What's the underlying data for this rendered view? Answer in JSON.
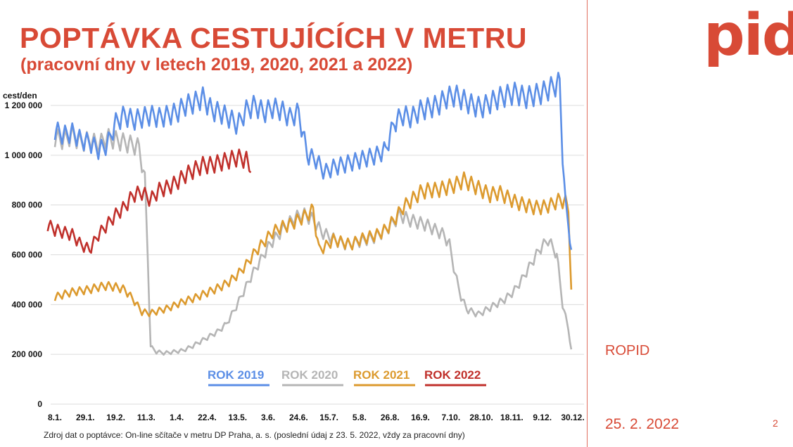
{
  "header": {
    "title": "POPTÁVKA CESTUJÍCÍCH V METRU",
    "subtitle": "(pracovní dny v letech 2019, 2020, 2021 a 2022)"
  },
  "logo": "pid",
  "organization": "ROPID",
  "date": "25. 2. 2022",
  "page_number": "2",
  "source_note": "Zdroj dat o poptávce: On-line sčítače v metru DP Praha, a. s. (poslední údaj z 23. 5. 2022, vždy za pracovní dny)",
  "colors": {
    "accent": "#d84a36",
    "rok2019": "#5b8ee6",
    "rok2020": "#b5b5b5",
    "rok2021": "#dc9a2e",
    "rok2022": "#c0302b"
  },
  "chart_data": {
    "type": "line",
    "title": "",
    "ylabel": "cest/den",
    "xlabel": "",
    "ylim": [
      0,
      1300000
    ],
    "yticks": [
      0,
      200000,
      400000,
      600000,
      800000,
      1000000,
      1200000
    ],
    "ytick_labels": [
      "0",
      "200 000",
      "400 000",
      "600 000",
      "800 000",
      "1 000 000",
      "1 200 000"
    ],
    "x_tick_labels": [
      "8.1.",
      "29.1.",
      "19.2.",
      "11.3.",
      "1.4.",
      "22.4.",
      "13.5.",
      "3.6.",
      "24.6.",
      "15.7.",
      "5.8.",
      "26.8.",
      "16.9.",
      "7.10.",
      "28.10.",
      "18.11.",
      "9.12.",
      "30.12."
    ],
    "x_tick_days": [
      8,
      29,
      50,
      71,
      92,
      113,
      134,
      155,
      176,
      197,
      218,
      239,
      260,
      281,
      302,
      323,
      344,
      365
    ],
    "x_unit": "day of year",
    "grid": true,
    "legend_position": "bottom",
    "series": [
      {
        "name": "ROK 2019",
        "x": [
          8,
          14,
          20,
          26,
          32,
          38,
          44,
          50,
          56,
          62,
          68,
          74,
          80,
          86,
          92,
          98,
          104,
          110,
          116,
          122,
          128,
          134,
          140,
          146,
          152,
          158,
          164,
          170,
          176,
          182,
          188,
          194,
          200,
          206,
          212,
          218,
          224,
          230,
          236,
          242,
          248,
          254,
          260,
          266,
          272,
          278,
          284,
          290,
          296,
          302,
          308,
          314,
          320,
          326,
          332,
          338,
          344,
          350,
          356,
          358,
          360,
          362,
          364
        ],
        "y": [
          1100000,
          1080000,
          1090000,
          1060000,
          1050000,
          1020000,
          1040000,
          1130000,
          1160000,
          1140000,
          1150000,
          1160000,
          1150000,
          1160000,
          1170000,
          1200000,
          1210000,
          1230000,
          1180000,
          1170000,
          1150000,
          1120000,
          1180000,
          1200000,
          1170000,
          1190000,
          1180000,
          1150000,
          1170000,
          1000000,
          980000,
          930000,
          950000,
          960000,
          970000,
          980000,
          990000,
          1000000,
          1020000,
          1130000,
          1160000,
          1150000,
          1180000,
          1190000,
          1200000,
          1230000,
          1240000,
          1220000,
          1200000,
          1190000,
          1210000,
          1230000,
          1240000,
          1250000,
          1230000,
          1240000,
          1250000,
          1270000,
          1290000,
          1000000,
          800000,
          720000,
          620000
        ]
      },
      {
        "name": "ROK 2020",
        "x": [
          8,
          14,
          20,
          26,
          32,
          38,
          44,
          50,
          56,
          62,
          66,
          70,
          72,
          74,
          78,
          84,
          90,
          96,
          102,
          108,
          114,
          120,
          126,
          132,
          138,
          144,
          150,
          156,
          162,
          168,
          174,
          180,
          186,
          192,
          198,
          204,
          210,
          216,
          222,
          228,
          234,
          240,
          246,
          252,
          258,
          264,
          270,
          276,
          280,
          284,
          288,
          292,
          296,
          300,
          306,
          312,
          318,
          324,
          330,
          336,
          342,
          348,
          354,
          358,
          362,
          364
        ],
        "y": [
          1070000,
          1060000,
          1080000,
          1050000,
          1060000,
          1040000,
          1070000,
          1060000,
          1050000,
          1040000,
          1030000,
          900000,
          600000,
          230000,
          210000,
          205000,
          210000,
          215000,
          230000,
          250000,
          270000,
          290000,
          320000,
          380000,
          450000,
          520000,
          580000,
          640000,
          680000,
          720000,
          750000,
          760000,
          740000,
          690000,
          670000,
          650000,
          640000,
          650000,
          660000,
          670000,
          690000,
          720000,
          760000,
          740000,
          730000,
          720000,
          700000,
          680000,
          640000,
          520000,
          430000,
          380000,
          370000,
          360000,
          380000,
          400000,
          420000,
          450000,
          500000,
          560000,
          620000,
          660000,
          600000,
          400000,
          300000,
          220000
        ]
      },
      {
        "name": "ROK 2021",
        "x": [
          8,
          14,
          20,
          26,
          32,
          38,
          44,
          50,
          56,
          62,
          68,
          74,
          80,
          86,
          92,
          98,
          104,
          110,
          116,
          122,
          128,
          134,
          140,
          146,
          152,
          158,
          164,
          170,
          176,
          182,
          186,
          190,
          194,
          200,
          206,
          212,
          218,
          224,
          230,
          236,
          242,
          248,
          254,
          260,
          266,
          272,
          278,
          284,
          290,
          296,
          302,
          308,
          314,
          320,
          326,
          332,
          338,
          344,
          350,
          356,
          360,
          362,
          364
        ],
        "y": [
          430000,
          440000,
          450000,
          455000,
          460000,
          470000,
          475000,
          470000,
          460000,
          420000,
          370000,
          365000,
          375000,
          385000,
          400000,
          415000,
          425000,
          440000,
          455000,
          470000,
          490000,
          520000,
          560000,
          610000,
          650000,
          690000,
          710000,
          720000,
          740000,
          760000,
          780000,
          620000,
          630000,
          660000,
          650000,
          640000,
          660000,
          670000,
          680000,
          700000,
          740000,
          790000,
          820000,
          850000,
          860000,
          860000,
          870000,
          880000,
          900000,
          880000,
          860000,
          840000,
          850000,
          830000,
          810000,
          800000,
          790000,
          790000,
          800000,
          820000,
          810000,
          780000,
          460000
        ]
      },
      {
        "name": "ROK 2022",
        "x": [
          3,
          8,
          14,
          20,
          26,
          32,
          38,
          44,
          50,
          56,
          62,
          68,
          74,
          80,
          86,
          92,
          98,
          104,
          110,
          116,
          122,
          128,
          134,
          140,
          143
        ],
        "y": [
          720000,
          700000,
          690000,
          680000,
          640000,
          620000,
          680000,
          720000,
          760000,
          790000,
          840000,
          850000,
          820000,
          860000,
          870000,
          890000,
          920000,
          940000,
          960000,
          960000,
          970000,
          980000,
          990000,
          980000,
          930000
        ]
      }
    ]
  }
}
